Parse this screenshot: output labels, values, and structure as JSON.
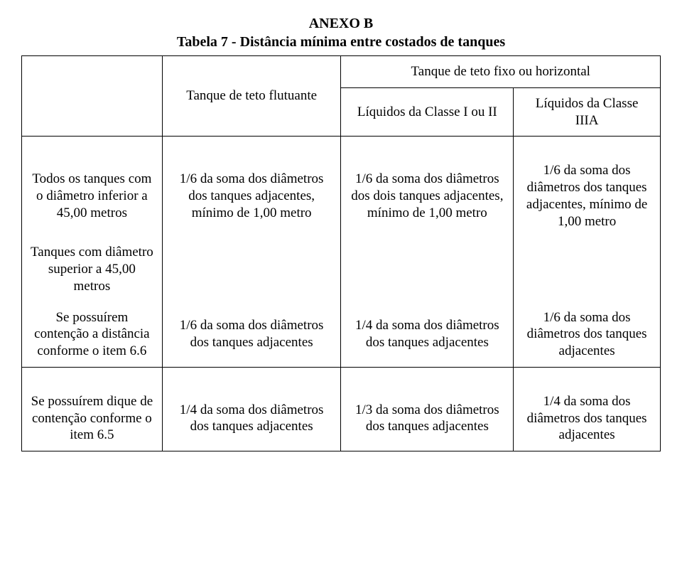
{
  "heading": {
    "line1": "ANEXO B",
    "line2": "Tabela 7 - Distância mínima entre costados de tanques"
  },
  "header": {
    "blank": "",
    "col_floating": "Tanque de teto flutuante",
    "col_fixed_span": "Tanque de teto fixo ou horizontal",
    "col_fixed_sub1": "Líquidos da Classe I ou II",
    "col_fixed_sub2": "Líquidos da Classe IIIA"
  },
  "rows": {
    "r1": {
      "label": "Todos os tanques com o diâmetro inferior a 45,00 metros",
      "c2": "1/6 da soma dos diâmetros dos tanques adjacentes, mínimo de 1,00 metro",
      "c3": "1/6 da soma dos diâmetros dos dois tanques adjacentes, mínimo de 1,00 metro",
      "c4": "1/6 da soma dos diâmetros dos tanques adjacentes, mínimo de 1,00 metro"
    },
    "r2": {
      "label": "Tanques com diâmetro superior a 45,00 metros"
    },
    "r3": {
      "label": "Se possuírem contenção a distância conforme o item 6.6",
      "c2": "1/6 da soma dos diâmetros dos tanques adjacentes",
      "c3": "1/4 da soma dos diâmetros dos tanques adjacentes",
      "c4": "1/6 da soma dos diâmetros dos tanques adjacentes"
    },
    "r4": {
      "label": "Se possuírem dique de contenção conforme o item 6.5",
      "c2": "1/4 da soma dos diâmetros dos tanques adjacentes",
      "c3": "1/3 da soma dos diâmetros dos tanques adjacentes",
      "c4": "1/4 da soma dos diâmetros dos tanques adjacentes"
    }
  }
}
